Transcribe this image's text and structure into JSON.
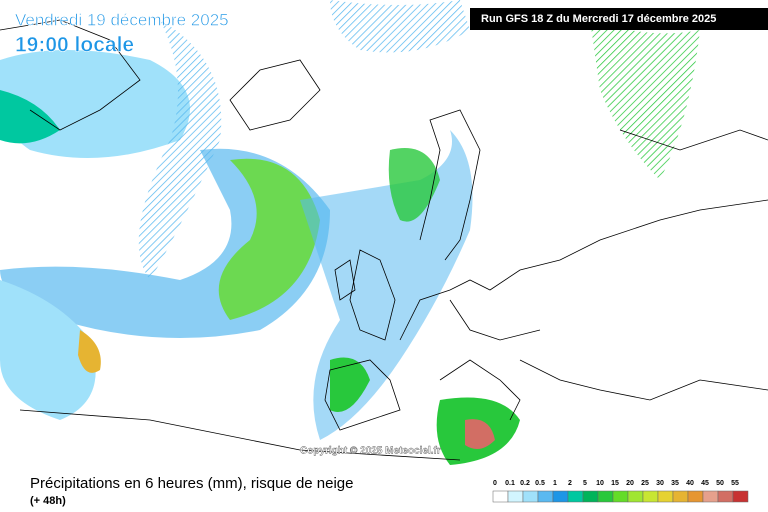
{
  "header": {
    "date": "Vendredi 19 décembre 2025",
    "time": "19:00 locale",
    "run": "Run GFS 18 Z du Mercredi 17 décembre 2025"
  },
  "copyright": "Copyright © 2025 Meteociel.fr",
  "caption": {
    "title": "Précipitations en 6 heures (mm), risque de neige",
    "lead": "(+ 48h)"
  },
  "legend": [
    {
      "value": 0,
      "color": "#ffffff"
    },
    {
      "value": 0.1,
      "color": "#d2f5ff"
    },
    {
      "value": 0.2,
      "color": "#a0e1fa"
    },
    {
      "value": 0.5,
      "color": "#5ab9f0"
    },
    {
      "value": 1,
      "color": "#1e96e6"
    },
    {
      "value": 2,
      "color": "#00c8a0"
    },
    {
      "value": 5,
      "color": "#00b45a"
    },
    {
      "value": 10,
      "color": "#28c83c"
    },
    {
      "value": 15,
      "color": "#64dc28"
    },
    {
      "value": 20,
      "color": "#a0e632"
    },
    {
      "value": 25,
      "color": "#c8e632"
    },
    {
      "value": 30,
      "color": "#e6d232"
    },
    {
      "value": 35,
      "color": "#e6b432"
    },
    {
      "value": 40,
      "color": "#e69632"
    },
    {
      "value": 45,
      "color": "#e6a08c"
    },
    {
      "value": 50,
      "color": "#d26e64"
    },
    {
      "value": 55,
      "color": "#c83232"
    }
  ]
}
